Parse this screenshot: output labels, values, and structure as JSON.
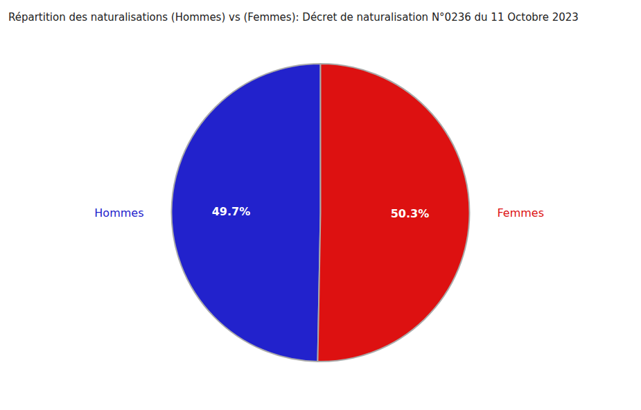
{
  "chart_data": {
    "type": "pie",
    "title": "Répartition des naturalisations (Hommes) vs (Femmes): Décret de naturalisation N°0236 du 11 Octobre 2023",
    "categories": [
      "Hommes",
      "Femmes"
    ],
    "values": [
      49.7,
      50.3
    ],
    "value_labels": [
      "49.7%",
      "50.3%"
    ],
    "colors": [
      "#2222cc",
      "#dd1111"
    ],
    "data_labels": true
  }
}
